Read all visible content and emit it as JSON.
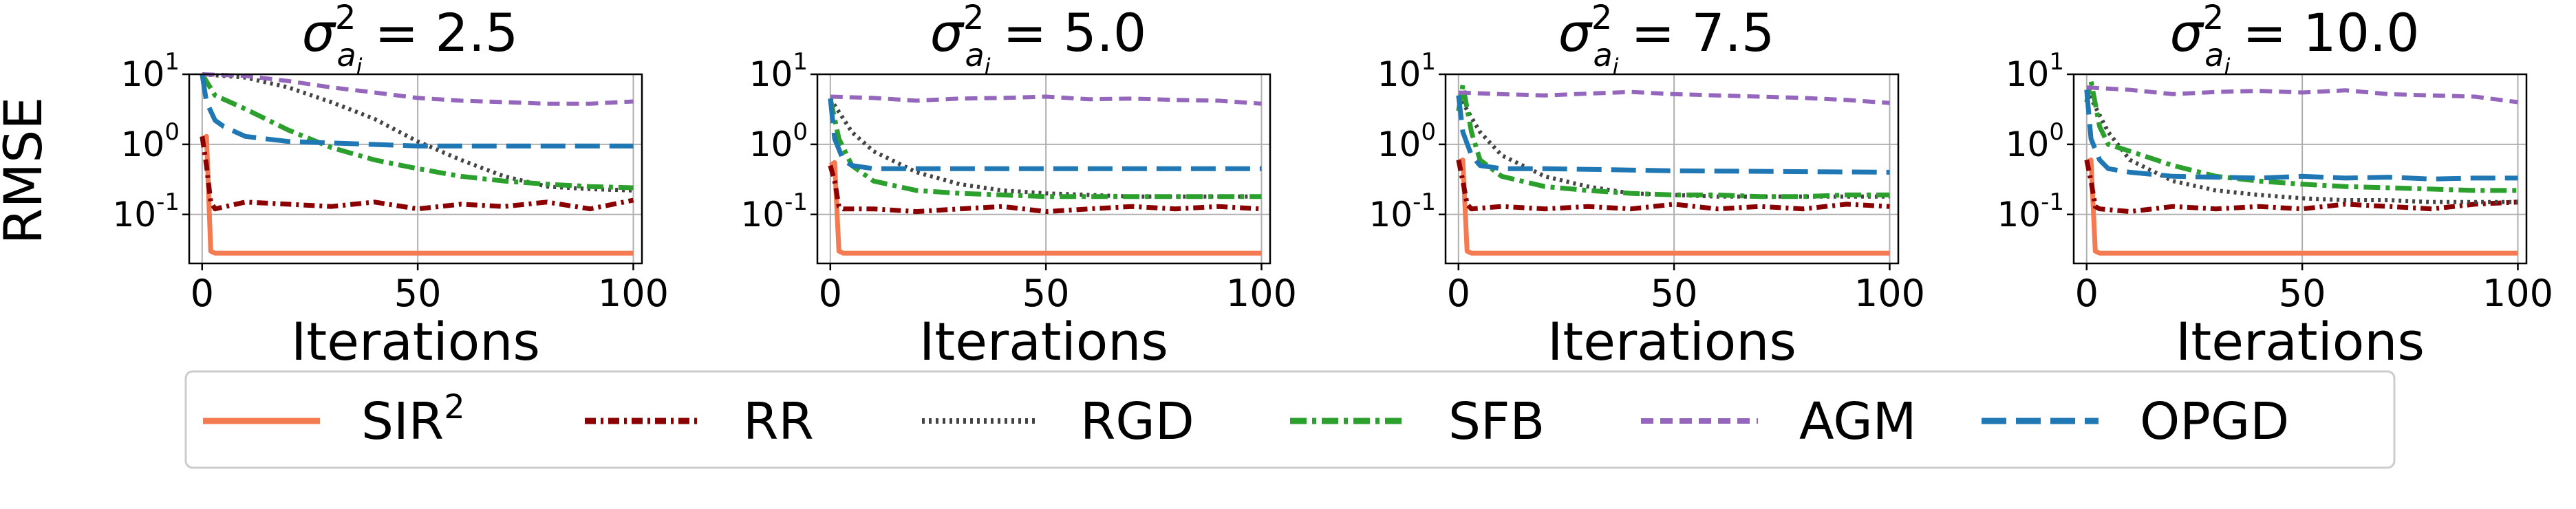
{
  "ylabel": "RMSE",
  "legend_position": "bottom",
  "series_styles": [
    {
      "name": "SIR",
      "superscript": "2",
      "color": "#f47a52",
      "dash": "solid"
    },
    {
      "name": "RR",
      "color": "#8b0000",
      "dash": "dotted-dash"
    },
    {
      "name": "RGD",
      "color": "#444444",
      "dash": "dotted"
    },
    {
      "name": "SFB",
      "color": "#2ca02c",
      "dash": "dashdot"
    },
    {
      "name": "AGM",
      "color": "#9467bd",
      "dash": "dashed"
    },
    {
      "name": "OPGD",
      "color": "#1f77b4",
      "dash": "long-dashed"
    }
  ],
  "chart_data": [
    {
      "type": "line",
      "title_sigma": "σ",
      "title_sup": "2",
      "title_sub": "a",
      "title_subsub": "i",
      "title_value": "= 2.5",
      "xlabel": "Iterations",
      "xlim": [
        -3,
        102
      ],
      "ylim": [
        0.02,
        10
      ],
      "yscale": "log",
      "xticks": [
        0,
        50,
        100
      ],
      "yticks_exp": [
        1,
        0,
        -1
      ],
      "grid": true,
      "series": [
        {
          "name": "SIR",
          "x": [
            0,
            1,
            2,
            3,
            100
          ],
          "y": [
            1.2,
            1.3,
            0.03,
            0.028,
            0.028
          ]
        },
        {
          "name": "RR",
          "x": [
            0,
            1,
            2,
            3,
            10,
            20,
            30,
            40,
            50,
            60,
            70,
            80,
            90,
            100
          ],
          "y": [
            1.3,
            0.5,
            0.15,
            0.12,
            0.15,
            0.14,
            0.13,
            0.15,
            0.12,
            0.14,
            0.13,
            0.15,
            0.12,
            0.16
          ]
        },
        {
          "name": "RGD",
          "x": [
            0,
            10,
            20,
            30,
            40,
            50,
            60,
            70,
            80,
            90,
            100
          ],
          "y": [
            10,
            9,
            6.5,
            4,
            2.3,
            1.1,
            0.6,
            0.35,
            0.25,
            0.23,
            0.22
          ]
        },
        {
          "name": "SFB",
          "x": [
            0,
            3,
            10,
            20,
            30,
            40,
            50,
            60,
            70,
            80,
            90,
            100
          ],
          "y": [
            10,
            5,
            3.2,
            1.6,
            0.9,
            0.6,
            0.45,
            0.35,
            0.3,
            0.27,
            0.25,
            0.24
          ]
        },
        {
          "name": "AGM",
          "x": [
            0,
            10,
            20,
            30,
            40,
            50,
            60,
            70,
            80,
            90,
            100
          ],
          "y": [
            10,
            9.5,
            8,
            6.5,
            5.5,
            4.6,
            4.2,
            4.0,
            3.8,
            3.8,
            4.1
          ]
        },
        {
          "name": "OPGD",
          "x": [
            0,
            1,
            3,
            5,
            10,
            20,
            50,
            100
          ],
          "y": [
            10,
            4,
            2.2,
            1.8,
            1.3,
            1.1,
            0.95,
            0.95
          ]
        }
      ]
    },
    {
      "type": "line",
      "title_sigma": "σ",
      "title_sup": "2",
      "title_sub": "a",
      "title_subsub": "i",
      "title_value": "= 5.0",
      "xlabel": "Iterations",
      "xlim": [
        -3,
        102
      ],
      "ylim": [
        0.02,
        10
      ],
      "yscale": "log",
      "xticks": [
        0,
        50,
        100
      ],
      "yticks_exp": [
        1,
        0,
        -1
      ],
      "grid": true,
      "series": [
        {
          "name": "SIR",
          "x": [
            0,
            1,
            2,
            3,
            100
          ],
          "y": [
            0.5,
            0.55,
            0.03,
            0.028,
            0.028
          ]
        },
        {
          "name": "RR",
          "x": [
            0,
            1,
            2,
            3,
            10,
            20,
            30,
            40,
            50,
            60,
            70,
            80,
            90,
            100
          ],
          "y": [
            0.5,
            0.3,
            0.13,
            0.12,
            0.12,
            0.11,
            0.12,
            0.13,
            0.11,
            0.12,
            0.13,
            0.12,
            0.13,
            0.12
          ]
        },
        {
          "name": "RGD",
          "x": [
            0,
            5,
            10,
            20,
            30,
            40,
            50,
            60,
            70,
            80,
            90,
            100
          ],
          "y": [
            4.5,
            1.5,
            0.8,
            0.4,
            0.27,
            0.22,
            0.2,
            0.19,
            0.18,
            0.18,
            0.18,
            0.18
          ]
        },
        {
          "name": "SFB",
          "x": [
            0,
            2,
            5,
            10,
            20,
            30,
            40,
            50,
            60,
            70,
            80,
            90,
            100
          ],
          "y": [
            4.5,
            1.2,
            0.5,
            0.3,
            0.22,
            0.2,
            0.19,
            0.18,
            0.18,
            0.18,
            0.18,
            0.18,
            0.18
          ]
        },
        {
          "name": "AGM",
          "x": [
            0,
            10,
            20,
            30,
            40,
            50,
            60,
            70,
            80,
            90,
            100
          ],
          "y": [
            4.8,
            4.6,
            4.2,
            4.5,
            4.6,
            4.8,
            4.4,
            4.5,
            4.3,
            4.2,
            3.8
          ]
        },
        {
          "name": "OPGD",
          "x": [
            0,
            1,
            3,
            5,
            10,
            50,
            100
          ],
          "y": [
            4.5,
            1.2,
            0.6,
            0.5,
            0.45,
            0.45,
            0.45
          ]
        }
      ]
    },
    {
      "type": "line",
      "title_sigma": "σ",
      "title_sup": "2",
      "title_sub": "a",
      "title_subsub": "i",
      "title_value": "= 7.5",
      "xlabel": "Iterations",
      "xlim": [
        -3,
        102
      ],
      "ylim": [
        0.02,
        10
      ],
      "yscale": "log",
      "xticks": [
        0,
        50,
        100
      ],
      "yticks_exp": [
        1,
        0,
        -1
      ],
      "grid": true,
      "series": [
        {
          "name": "SIR",
          "x": [
            0,
            1,
            2,
            3,
            100
          ],
          "y": [
            0.55,
            0.6,
            0.03,
            0.028,
            0.028
          ]
        },
        {
          "name": "RR",
          "x": [
            0,
            1,
            2,
            3,
            10,
            20,
            30,
            40,
            50,
            60,
            70,
            80,
            90,
            100
          ],
          "y": [
            0.6,
            0.3,
            0.14,
            0.12,
            0.13,
            0.12,
            0.13,
            0.12,
            0.14,
            0.12,
            0.13,
            0.12,
            0.14,
            0.13
          ]
        },
        {
          "name": "RGD",
          "x": [
            0,
            5,
            10,
            20,
            30,
            40,
            50,
            60,
            70,
            80,
            90,
            100
          ],
          "y": [
            5,
            1.5,
            0.7,
            0.35,
            0.25,
            0.2,
            0.19,
            0.18,
            0.18,
            0.18,
            0.18,
            0.18
          ]
        },
        {
          "name": "SFB",
          "x": [
            0,
            1,
            3,
            5,
            10,
            20,
            30,
            40,
            50,
            60,
            70,
            80,
            90,
            100
          ],
          "y": [
            3,
            7,
            1.5,
            0.6,
            0.35,
            0.25,
            0.22,
            0.2,
            0.19,
            0.19,
            0.18,
            0.18,
            0.19,
            0.19
          ]
        },
        {
          "name": "AGM",
          "x": [
            0,
            10,
            20,
            30,
            40,
            50,
            60,
            70,
            80,
            90,
            100
          ],
          "y": [
            5.5,
            5.2,
            5.0,
            5.3,
            5.6,
            5.2,
            5.0,
            4.8,
            4.6,
            4.3,
            3.9
          ]
        },
        {
          "name": "OPGD",
          "x": [
            0,
            1,
            3,
            5,
            10,
            20,
            50,
            100
          ],
          "y": [
            5,
            1.5,
            0.7,
            0.5,
            0.45,
            0.45,
            0.42,
            0.4
          ]
        }
      ]
    },
    {
      "type": "line",
      "title_sigma": "σ",
      "title_sup": "2",
      "title_sub": "a",
      "title_subsub": "i",
      "title_value": "= 10.0",
      "xlabel": "Iterations",
      "xlim": [
        -3,
        102
      ],
      "ylim": [
        0.02,
        10
      ],
      "yscale": "log",
      "xticks": [
        0,
        50,
        100
      ],
      "yticks_exp": [
        1,
        0,
        -1
      ],
      "grid": true,
      "series": [
        {
          "name": "SIR",
          "x": [
            0,
            1,
            2,
            3,
            100
          ],
          "y": [
            0.55,
            0.6,
            0.03,
            0.028,
            0.028
          ]
        },
        {
          "name": "RR",
          "x": [
            0,
            1,
            2,
            3,
            10,
            20,
            30,
            40,
            50,
            60,
            70,
            80,
            90,
            100
          ],
          "y": [
            0.6,
            0.3,
            0.13,
            0.12,
            0.11,
            0.13,
            0.12,
            0.13,
            0.12,
            0.14,
            0.13,
            0.12,
            0.14,
            0.15
          ]
        },
        {
          "name": "RGD",
          "x": [
            0,
            5,
            10,
            20,
            30,
            40,
            50,
            60,
            70,
            80,
            90,
            100
          ],
          "y": [
            6,
            1.5,
            0.6,
            0.3,
            0.22,
            0.19,
            0.17,
            0.16,
            0.16,
            0.15,
            0.15,
            0.15
          ]
        },
        {
          "name": "SFB",
          "x": [
            0,
            1,
            3,
            5,
            10,
            20,
            30,
            40,
            50,
            60,
            70,
            80,
            90,
            100
          ],
          "y": [
            4,
            8,
            1.8,
            1.0,
            0.8,
            0.5,
            0.35,
            0.3,
            0.27,
            0.25,
            0.24,
            0.23,
            0.22,
            0.22
          ]
        },
        {
          "name": "AGM",
          "x": [
            0,
            10,
            20,
            30,
            40,
            50,
            60,
            70,
            80,
            90,
            100
          ],
          "y": [
            6.5,
            6.0,
            5.2,
            5.6,
            5.8,
            5.5,
            5.9,
            5.2,
            5.0,
            4.8,
            4.0
          ]
        },
        {
          "name": "OPGD",
          "x": [
            0,
            1,
            3,
            5,
            10,
            20,
            30,
            40,
            50,
            60,
            70,
            80,
            90,
            100
          ],
          "y": [
            6,
            1.2,
            0.6,
            0.45,
            0.4,
            0.35,
            0.34,
            0.33,
            0.35,
            0.33,
            0.34,
            0.32,
            0.33,
            0.33
          ]
        }
      ]
    }
  ]
}
